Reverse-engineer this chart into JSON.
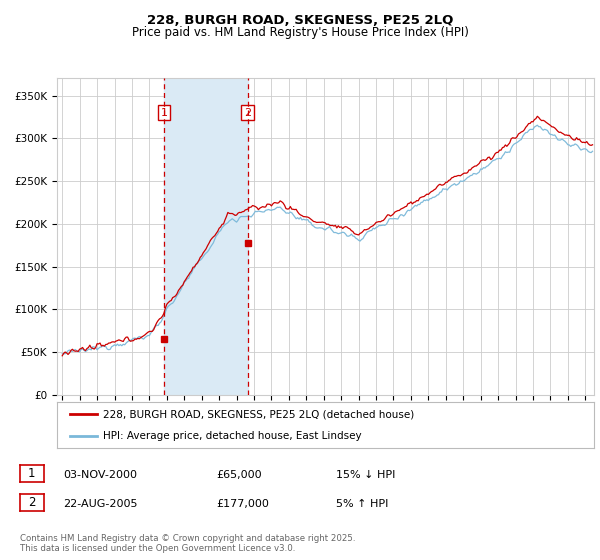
{
  "title": "228, BURGH ROAD, SKEGNESS, PE25 2LQ",
  "subtitle": "Price paid vs. HM Land Registry's House Price Index (HPI)",
  "legend_line1": "228, BURGH ROAD, SKEGNESS, PE25 2LQ (detached house)",
  "legend_line2": "HPI: Average price, detached house, East Lindsey",
  "sale1_date": "03-NOV-2000",
  "sale1_price": "£65,000",
  "sale1_hpi": "15% ↓ HPI",
  "sale2_date": "22-AUG-2005",
  "sale2_price": "£177,000",
  "sale2_hpi": "5% ↑ HPI",
  "footnote": "Contains HM Land Registry data © Crown copyright and database right 2025.\nThis data is licensed under the Open Government Licence v3.0.",
  "hpi_color": "#7ab8d9",
  "price_color": "#cc0000",
  "dashed_line_color": "#cc0000",
  "shade_color": "#daeaf5",
  "grid_color": "#cccccc",
  "background_color": "#ffffff",
  "sale1_x": 2000.84,
  "sale2_x": 2005.64,
  "ylim": [
    0,
    370000
  ],
  "xlim_start": 1994.7,
  "xlim_end": 2025.5
}
